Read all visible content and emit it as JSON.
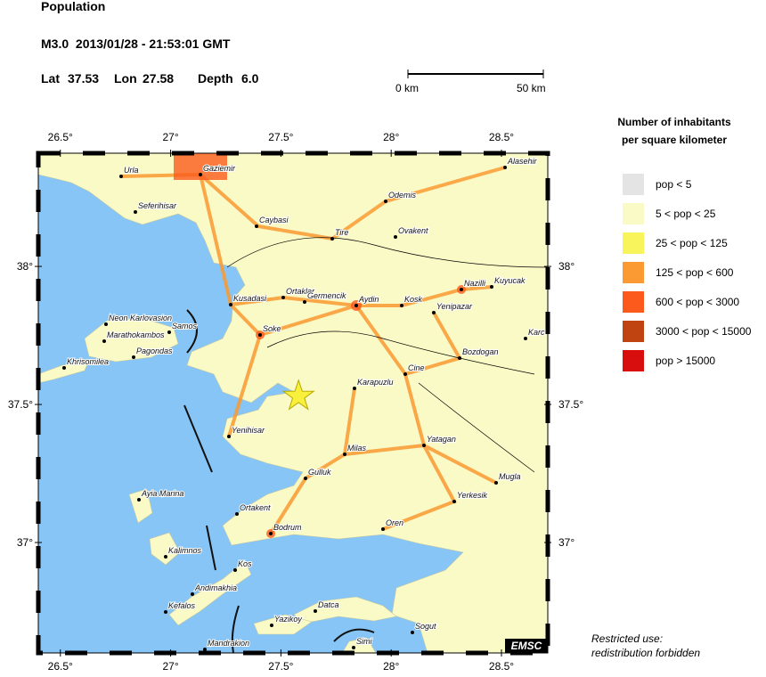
{
  "header": {
    "title": "Population",
    "event": "M3.0  2013/01/28 - 21:53:01 GMT",
    "lat_label": "Lat",
    "lat": 37.53,
    "lon_label": "Lon",
    "lon": 27.58,
    "depth_label": "Depth",
    "depth": "6.0"
  },
  "scale": {
    "start": "0 km",
    "end": "50 km"
  },
  "map": {
    "lon_range": [
      26.4,
      28.71
    ],
    "lat_range": [
      36.6,
      38.41
    ],
    "lon_ticks": [
      {
        "value": 26.5,
        "label": "26.5°"
      },
      {
        "value": 27,
        "label": "27°"
      },
      {
        "value": 27.5,
        "label": "27.5°"
      },
      {
        "value": 28,
        "label": "28°"
      },
      {
        "value": 28.5,
        "label": "28.5°"
      }
    ],
    "lat_ticks": [
      {
        "value": 38,
        "label": "38°"
      },
      {
        "value": 37.5,
        "label": "37.5°"
      },
      {
        "value": 37,
        "label": "37°"
      }
    ],
    "towns": [
      "Urla",
      "Gaziemir",
      "Seferihisar",
      "Caybasi",
      "Tire",
      "Odemis",
      "Ovakent",
      "Alasehir",
      "Kusadasi",
      "Ortaklar",
      "Germencik",
      "Aydin",
      "Kosk",
      "Nazilli",
      "Kuyucak",
      "Yenipazar",
      "Neon Karlovasion",
      "Samos",
      "Marathokambos",
      "Pagondas",
      "Khrisomilea",
      "Soke",
      "Bozdogan",
      "Karc",
      "Cine",
      "Karapuzlu",
      "Yenihisar",
      "Milas",
      "Yatagan",
      "Gulluk",
      "Mugla",
      "Yerkesik",
      "Ayia Marina",
      "Ortakent",
      "Bodrum",
      "Oren",
      "Kalimnos",
      "Kos",
      "Andimakhia",
      "Kefalos",
      "Datca",
      "Yazikoy",
      "Sogut",
      "Mandrakion",
      "Simi"
    ],
    "badge": "EMSC"
  },
  "legend": {
    "title_line1": "Number of inhabitants",
    "title_line2": "per square kilometer",
    "entries": [
      {
        "label": "pop < 5",
        "color": "#e4e4e4"
      },
      {
        "label": "5 < pop < 25",
        "color": "#fafac6"
      },
      {
        "label": "25 < pop < 125",
        "color": "#f8f45c"
      },
      {
        "label": "125 < pop < 600",
        "color": "#fb9a32"
      },
      {
        "label": "600 < pop < 3000",
        "color": "#fb5a1c"
      },
      {
        "label": "3000 < pop < 15000",
        "color": "#c04412"
      },
      {
        "label": "pop > 15000",
        "color": "#d80e0e"
      }
    ]
  },
  "footer": {
    "line1": "Restricted use:",
    "line2": "redistribution forbidden"
  }
}
